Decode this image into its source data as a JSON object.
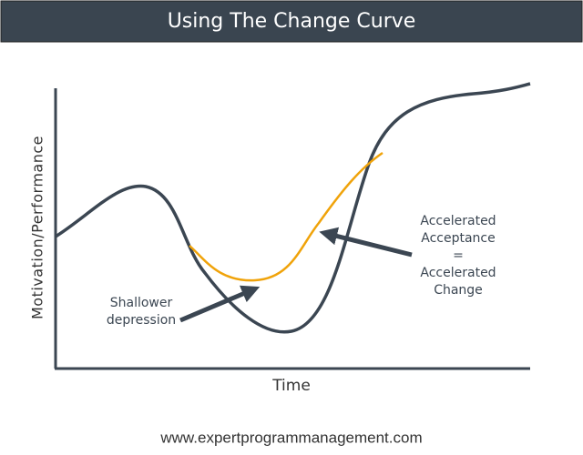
{
  "header": {
    "title": "Using The Change Curve"
  },
  "axes": {
    "y_label": "Motivation/Performance",
    "x_label": "Time"
  },
  "annotations": {
    "left": [
      "Shallower",
      "depression"
    ],
    "right": [
      "Accelerated",
      "Acceptance",
      "=",
      "Accelerated",
      "Change"
    ]
  },
  "footer": {
    "url": "www.expertprogrammanagement.com"
  }
}
